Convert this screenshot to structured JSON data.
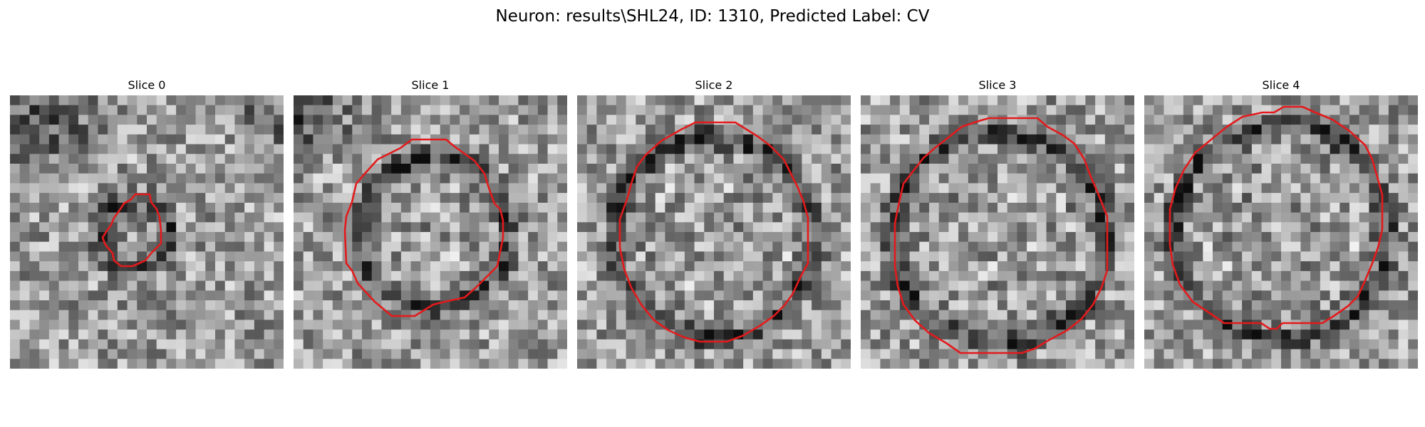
{
  "figure": {
    "title": "Neuron: results\\SHL24, ID: 1310, Predicted Label: CV"
  },
  "slices": [
    {
      "title": "Slice 0",
      "contour_radius_fraction": 0.14
    },
    {
      "title": "Slice 1",
      "contour_radius_fraction": 0.31
    },
    {
      "title": "Slice 2",
      "contour_radius_fraction": 0.38
    },
    {
      "title": "Slice 3",
      "contour_radius_fraction": 0.41
    },
    {
      "title": "Slice 4",
      "contour_radius_fraction": 0.4
    }
  ],
  "colors": {
    "contour": "#e31a1c",
    "background": "#ffffff"
  }
}
